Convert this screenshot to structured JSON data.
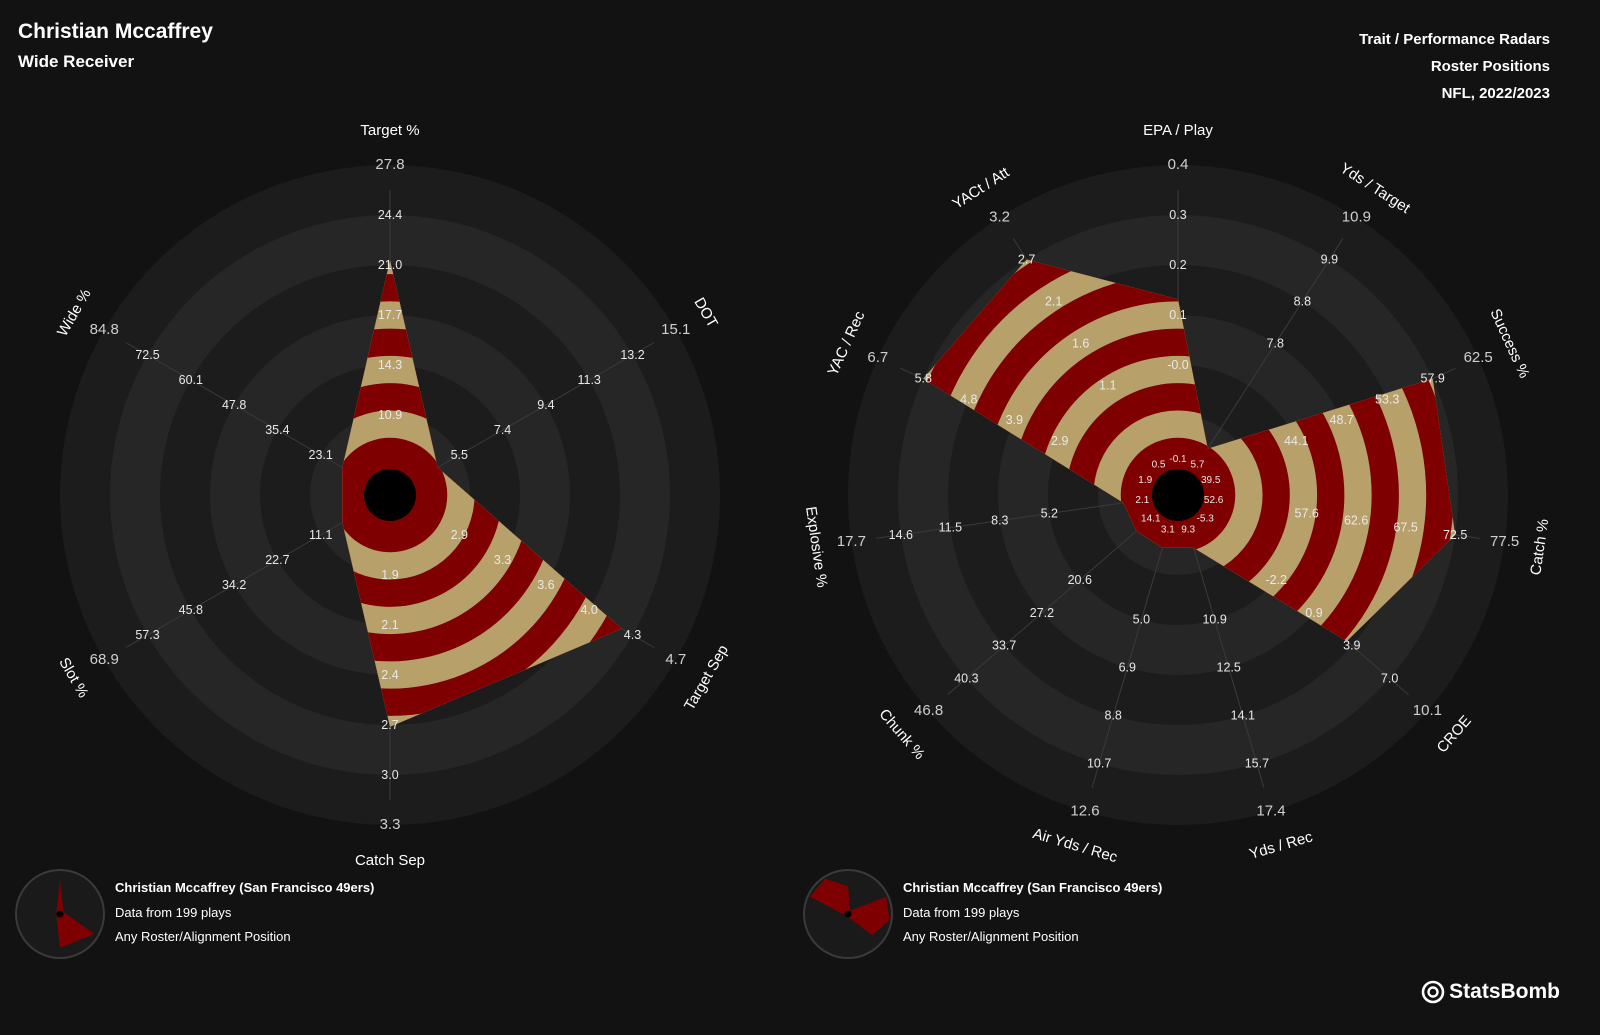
{
  "header": {
    "player": "Christian Mccaffrey",
    "position": "Wide Receiver",
    "lines": [
      "Trait / Performance Radars",
      "Roster Positions",
      "NFL, 2022/2023"
    ]
  },
  "colors": {
    "background": "#121212",
    "ring_dark": "#1c1c1c",
    "ring_light": "#262626",
    "stripe_red": "#7f0000",
    "stripe_gold": "#b8a06a"
  },
  "chart_data": [
    {
      "type": "radar",
      "rings": 5,
      "axes": [
        {
          "label": "Target %",
          "ticks": [
            "10.9",
            "14.3",
            "17.7",
            "21.0",
            "24.4",
            "27.8"
          ],
          "inner_ticks": [],
          "value": 24.4
        },
        {
          "label": "DOT",
          "ticks": [
            "5.5",
            "7.4",
            "9.4",
            "11.3",
            "13.2",
            "15.1"
          ],
          "inner_ticks": [],
          "value": 5.5
        },
        {
          "label": "Target Sep",
          "ticks": [
            "2.9",
            "3.3",
            "3.6",
            "4.0",
            "4.3",
            "4.7"
          ],
          "inner_ticks": [],
          "value": 4.6
        },
        {
          "label": "Catch Sep",
          "ticks": [
            "1.9",
            "2.1",
            "2.4",
            "2.7",
            "3.0",
            "3.3"
          ],
          "inner_ticks": [],
          "value": 3.0
        },
        {
          "label": "Slot %",
          "ticks": [
            "11.1",
            "22.7",
            "34.2",
            "45.8",
            "57.3",
            "68.9"
          ],
          "inner_ticks": [],
          "value": 11.1
        },
        {
          "label": "Wide %",
          "ticks": [
            "23.1",
            "35.4",
            "47.8",
            "60.1",
            "72.5",
            "84.8"
          ],
          "inner_ticks": [],
          "value": 23.1
        }
      ],
      "legend": {
        "name": "Christian Mccaffrey (San Francisco 49ers)",
        "sample": "Data from 199 plays",
        "position_filter": "Any Roster/Alignment Position"
      }
    },
    {
      "type": "radar",
      "rings": 5,
      "axes": [
        {
          "label": "EPA / Play",
          "ticks": [
            "-0.0",
            "0.1",
            "0.2",
            "0.3",
            "0.4"
          ],
          "inner_ticks": [
            "-0.1"
          ],
          "value": 0.25
        },
        {
          "label": "Yds / Target",
          "ticks": [
            "7.8",
            "8.8",
            "9.9",
            "10.9"
          ],
          "inner_ticks": [
            "5.7"
          ],
          "value": 7.8
        },
        {
          "label": "Success %",
          "ticks": [
            "44.1",
            "48.7",
            "53.3",
            "57.9",
            "62.5"
          ],
          "inner_ticks": [
            "39.5"
          ],
          "value": 62.5
        },
        {
          "label": "Catch %",
          "ticks": [
            "57.6",
            "62.6",
            "67.5",
            "72.5",
            "77.5"
          ],
          "inner_ticks": [
            "52.6"
          ],
          "value": 77.5
        },
        {
          "label": "CROE",
          "ticks": [
            "-2.2",
            "0.9",
            "3.9",
            "7.0",
            "10.1"
          ],
          "inner_ticks": [
            "-5.3"
          ],
          "value": 7.0
        },
        {
          "label": "Yds / Rec",
          "ticks": [
            "10.9",
            "12.5",
            "14.1",
            "15.7",
            "17.4"
          ],
          "inner_ticks": [
            "9.3"
          ],
          "value": 9.3
        },
        {
          "label": "Air Yds / Rec",
          "ticks": [
            "5.0",
            "6.9",
            "8.8",
            "10.7",
            "12.6"
          ],
          "inner_ticks": [
            "3.1"
          ],
          "value": 3.1
        },
        {
          "label": "Chunk %",
          "ticks": [
            "20.6",
            "27.2",
            "33.7",
            "40.3",
            "46.8"
          ],
          "inner_ticks": [
            "14.1"
          ],
          "value": 14.1
        },
        {
          "label": "Explosive %",
          "ticks": [
            "5.2",
            "8.3",
            "11.5",
            "14.6",
            "17.7"
          ],
          "inner_ticks": [
            "2.1"
          ],
          "value": 5.2
        },
        {
          "label": "YAC / Rec",
          "ticks": [
            "2.9",
            "3.9",
            "4.8",
            "5.8",
            "6.7"
          ],
          "inner_ticks": [
            "1.9"
          ],
          "value": 6.7
        },
        {
          "label": "YACt / Att",
          "ticks": [
            "1.1",
            "1.6",
            "2.1",
            "2.7",
            "3.2"
          ],
          "inner_ticks": [
            "0.5"
          ],
          "value": 3.2
        }
      ],
      "legend": {
        "name": "Christian Mccaffrey (San Francisco 49ers)",
        "sample": "Data from 199 plays",
        "position_filter": "Any Roster/Alignment Position"
      }
    }
  ],
  "brand": {
    "name": "StatsBomb"
  }
}
